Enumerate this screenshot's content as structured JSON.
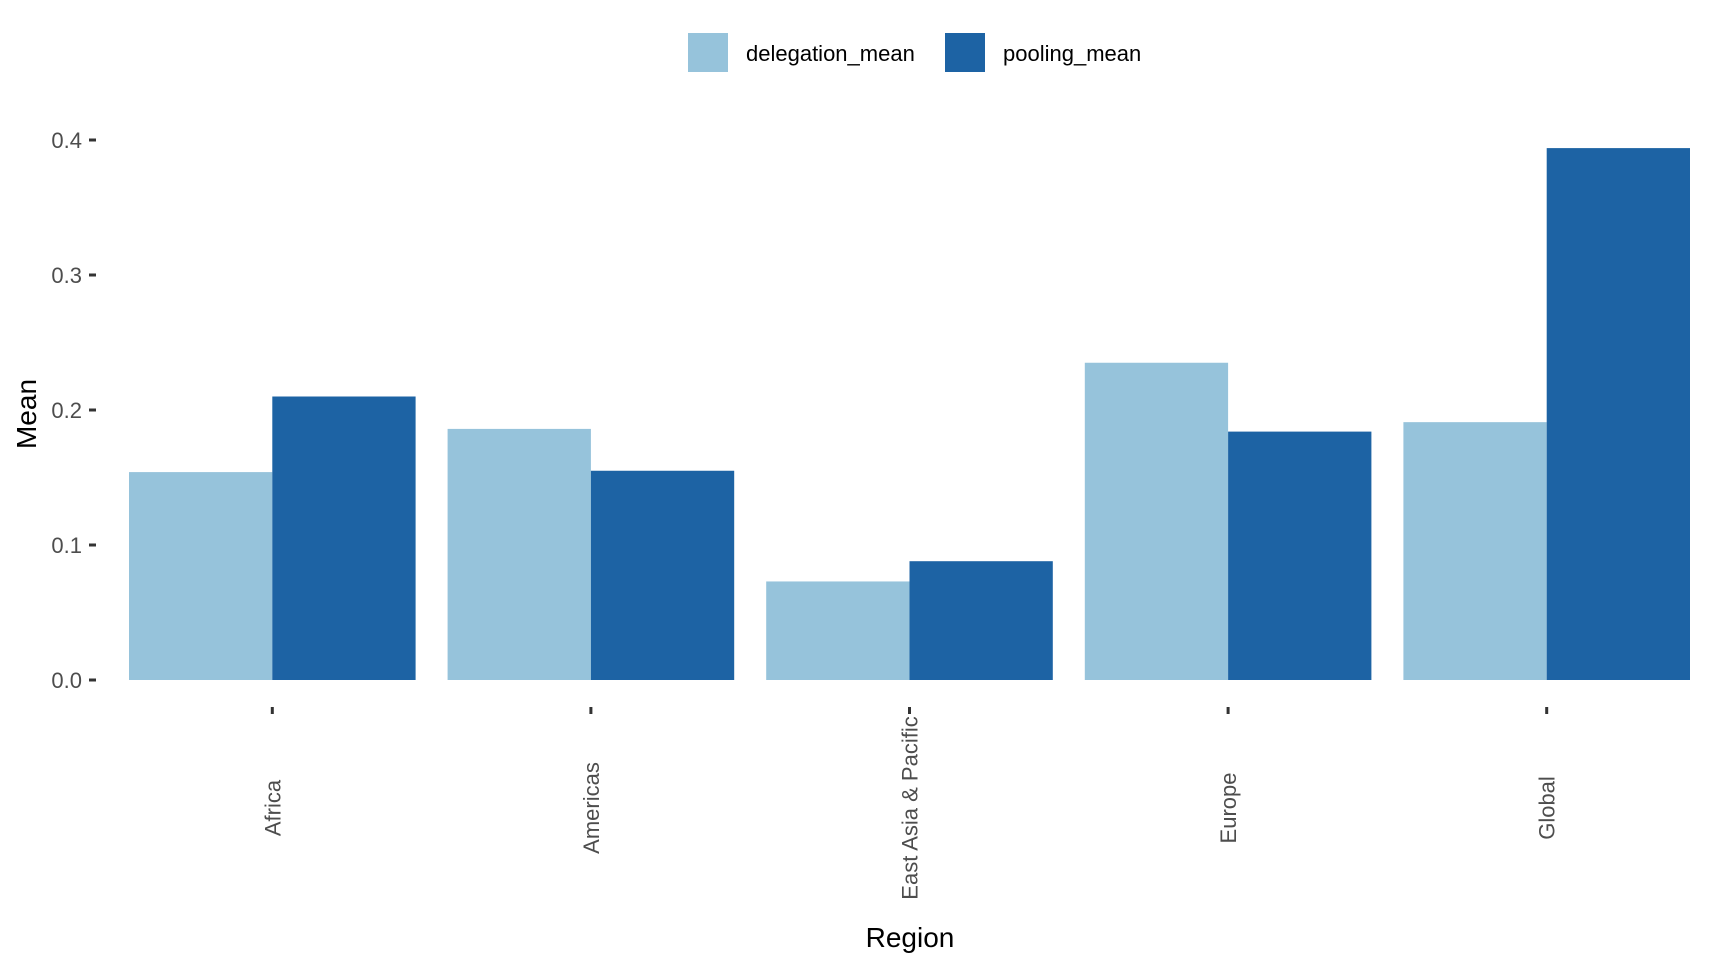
{
  "chart_data": {
    "type": "bar",
    "categories": [
      "Africa",
      "Americas",
      "East Asia & Pacific",
      "Europe",
      "Global"
    ],
    "series": [
      {
        "name": "delegation_mean",
        "color": "#96c3db",
        "values": [
          0.154,
          0.186,
          0.073,
          0.235,
          0.191
        ]
      },
      {
        "name": "pooling_mean",
        "color": "#1d63a4",
        "values": [
          0.21,
          0.155,
          0.088,
          0.184,
          0.394
        ]
      }
    ],
    "xlabel": "Region",
    "ylabel": "Mean",
    "ylim": [
      0,
      0.4
    ],
    "yticks": [
      0.0,
      0.1,
      0.2,
      0.3,
      0.4
    ],
    "ytick_labels": [
      "0.0",
      "0.1",
      "0.2",
      "0.3",
      "0.4"
    ],
    "grid": false,
    "legend_position": "top"
  }
}
